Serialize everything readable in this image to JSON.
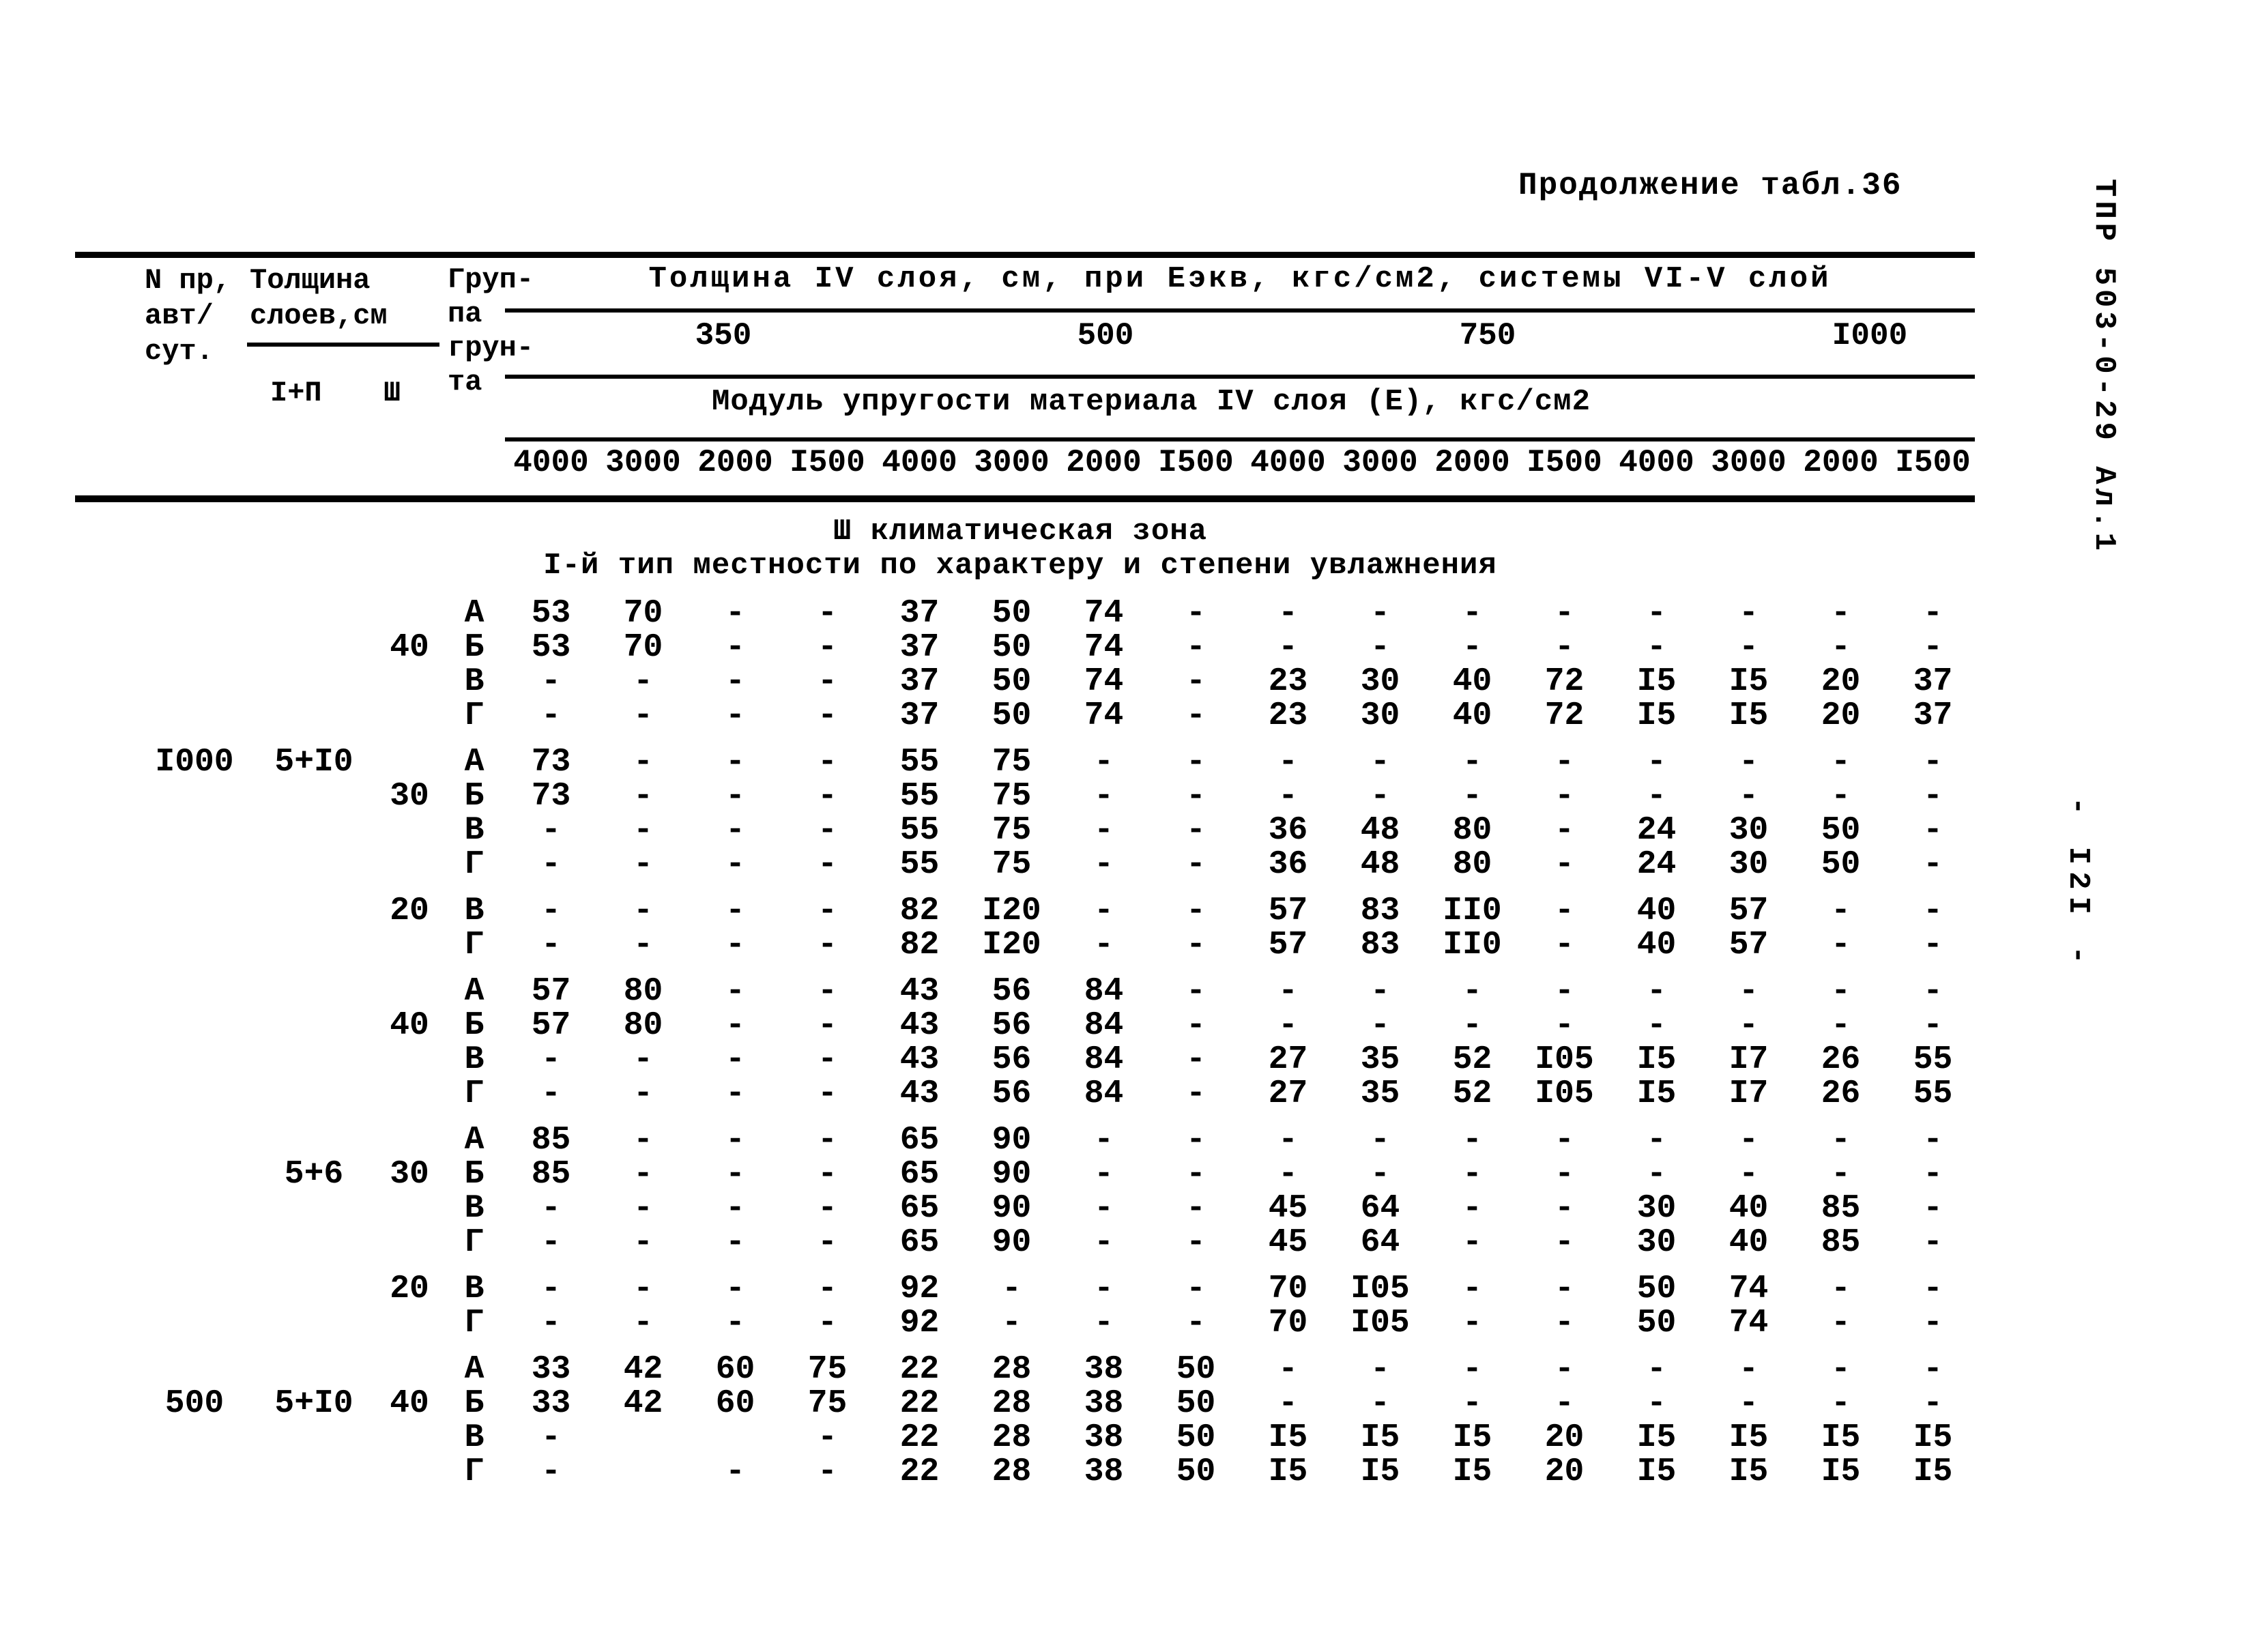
{
  "page": {
    "title": "Продолжение табл.36",
    "doc_code_vertical": "ТПР 503-0-29  Ал.1",
    "page_number_vertical": "-  I2I  -",
    "ink_color": "#000000",
    "paper_color": "#ffffff"
  },
  "table": {
    "header": {
      "traffic_lines": [
        "N пр,",
        "авт/",
        "сут."
      ],
      "thickness_title": "Толщина",
      "thickness_title2": "слоев,см",
      "thickness_sub_left": "I+П",
      "thickness_sub_right": "Ш",
      "soil_group_lines": [
        "Груп-",
        "па",
        "грун-",
        "та"
      ],
      "span_title": "Толщина IV слоя, см, при Еэкв, кгс/см2, системы VI-V слой",
      "eekv_values": [
        "350",
        "500",
        "750",
        "I000"
      ],
      "modulus_title": "Модуль упругости материала IV слоя (Е), кгс/см2",
      "modulus_values": [
        "4000",
        "3000",
        "2000",
        "I500",
        "4000",
        "3000",
        "2000",
        "I500",
        "4000",
        "3000",
        "2000",
        "I500",
        "4000",
        "3000",
        "2000",
        "I500"
      ]
    },
    "zone_title": "Ш климатическая зона",
    "zone_subtitle": "I-й тип местности по характеру и степени увлажнения",
    "rows": [
      {
        "n": "",
        "t12": "",
        "t3": "",
        "g": "А",
        "v": [
          "53",
          "70",
          "-",
          "-",
          "37",
          "50",
          "74",
          "-",
          "-",
          "-",
          "-",
          "-",
          "-",
          "-",
          "-",
          "-"
        ]
      },
      {
        "n": "",
        "t12": "",
        "t3": "40",
        "g": "Б",
        "v": [
          "53",
          "70",
          "-",
          "-",
          "37",
          "50",
          "74",
          "-",
          "-",
          "-",
          "-",
          "-",
          "-",
          "-",
          "-",
          "-"
        ]
      },
      {
        "n": "",
        "t12": "",
        "t3": "",
        "g": "В",
        "v": [
          "-",
          "-",
          "-",
          "-",
          "37",
          "50",
          "74",
          "-",
          "23",
          "30",
          "40",
          "72",
          "I5",
          "I5",
          "20",
          "37"
        ]
      },
      {
        "n": "",
        "t12": "",
        "t3": "",
        "g": "Г",
        "v": [
          "-",
          "-",
          "-",
          "-",
          "37",
          "50",
          "74",
          "-",
          "23",
          "30",
          "40",
          "72",
          "I5",
          "I5",
          "20",
          "37"
        ]
      },
      {
        "gap": true,
        "n": "I000",
        "t12": "5+I0",
        "t3": "",
        "g": "А",
        "v": [
          "73",
          "-",
          "-",
          "-",
          "55",
          "75",
          "-",
          "-",
          "-",
          "-",
          "-",
          "-",
          "-",
          "-",
          "-",
          "-"
        ]
      },
      {
        "n": "",
        "t12": "",
        "t3": "30",
        "g": "Б",
        "v": [
          "73",
          "-",
          "-",
          "-",
          "55",
          "75",
          "-",
          "-",
          "-",
          "-",
          "-",
          "-",
          "-",
          "-",
          "-",
          "-"
        ]
      },
      {
        "n": "",
        "t12": "",
        "t3": "",
        "g": "В",
        "v": [
          "-",
          "-",
          "-",
          "-",
          "55",
          "75",
          "-",
          "-",
          "36",
          "48",
          "80",
          "-",
          "24",
          "30",
          "50",
          "-"
        ]
      },
      {
        "n": "",
        "t12": "",
        "t3": "",
        "g": "Г",
        "v": [
          "-",
          "-",
          "-",
          "-",
          "55",
          "75",
          "-",
          "-",
          "36",
          "48",
          "80",
          "-",
          "24",
          "30",
          "50",
          "-"
        ]
      },
      {
        "gap": true,
        "n": "",
        "t12": "",
        "t3": "20",
        "g": "В",
        "v": [
          "-",
          "-",
          "-",
          "-",
          "82",
          "I20",
          "-",
          "-",
          "57",
          "83",
          "II0",
          "-",
          "40",
          "57",
          "-",
          "-"
        ]
      },
      {
        "n": "",
        "t12": "",
        "t3": "",
        "g": "Г",
        "v": [
          "-",
          "-",
          "-",
          "-",
          "82",
          "I20",
          "-",
          "-",
          "57",
          "83",
          "II0",
          "-",
          "40",
          "57",
          "-",
          "-"
        ]
      },
      {
        "gap": true,
        "n": "",
        "t12": "",
        "t3": "",
        "g": "А",
        "v": [
          "57",
          "80",
          "-",
          "-",
          "43",
          "56",
          "84",
          "-",
          "-",
          "-",
          "-",
          "-",
          "-",
          "-",
          "-",
          "-"
        ]
      },
      {
        "n": "",
        "t12": "",
        "t3": "40",
        "g": "Б",
        "v": [
          "57",
          "80",
          "-",
          "-",
          "43",
          "56",
          "84",
          "-",
          "-",
          "-",
          "-",
          "-",
          "-",
          "-",
          "-",
          "-"
        ]
      },
      {
        "n": "",
        "t12": "",
        "t3": "",
        "g": "В",
        "v": [
          "-",
          "-",
          "-",
          "-",
          "43",
          "56",
          "84",
          "-",
          "27",
          "35",
          "52",
          "I05",
          "I5",
          "I7",
          "26",
          "55"
        ]
      },
      {
        "n": "",
        "t12": "",
        "t3": "",
        "g": "Г",
        "v": [
          "-",
          "-",
          "-",
          "-",
          "43",
          "56",
          "84",
          "-",
          "27",
          "35",
          "52",
          "I05",
          "I5",
          "I7",
          "26",
          "55"
        ]
      },
      {
        "gap": true,
        "n": "",
        "t12": "",
        "t3": "",
        "g": "А",
        "v": [
          "85",
          "-",
          "-",
          "-",
          "65",
          "90",
          "-",
          "-",
          "-",
          "-",
          "-",
          "-",
          "-",
          "-",
          "-",
          "-"
        ]
      },
      {
        "n": "",
        "t12": "5+6",
        "t3": "30",
        "g": "Б",
        "v": [
          "85",
          "-",
          "-",
          "-",
          "65",
          "90",
          "-",
          "-",
          "-",
          "-",
          "-",
          "-",
          "-",
          "-",
          "-",
          "-"
        ]
      },
      {
        "n": "",
        "t12": "",
        "t3": "",
        "g": "В",
        "v": [
          "-",
          "-",
          "-",
          "-",
          "65",
          "90",
          "-",
          "-",
          "45",
          "64",
          "-",
          "-",
          "30",
          "40",
          "85",
          "-"
        ]
      },
      {
        "n": "",
        "t12": "",
        "t3": "",
        "g": "Г",
        "v": [
          "-",
          "-",
          "-",
          "-",
          "65",
          "90",
          "-",
          "-",
          "45",
          "64",
          "-",
          "-",
          "30",
          "40",
          "85",
          "-"
        ]
      },
      {
        "gap": true,
        "n": "",
        "t12": "",
        "t3": "20",
        "g": "В",
        "v": [
          "-",
          "-",
          "-",
          "-",
          "92",
          "-",
          "-",
          "-",
          "70",
          "I05",
          "-",
          "-",
          "50",
          "74",
          "-",
          "-"
        ]
      },
      {
        "n": "",
        "t12": "",
        "t3": "",
        "g": "Г",
        "v": [
          "-",
          "-",
          "-",
          "-",
          "92",
          "-",
          "-",
          "-",
          "70",
          "I05",
          "-",
          "-",
          "50",
          "74",
          "-",
          "-"
        ]
      },
      {
        "gap": true,
        "n": "",
        "t12": "",
        "t3": "",
        "g": "А",
        "v": [
          "33",
          "42",
          "60",
          "75",
          "22",
          "28",
          "38",
          "50",
          "-",
          "-",
          "-",
          "-",
          "-",
          "-",
          "-",
          "-"
        ]
      },
      {
        "n": "500",
        "t12": "5+I0",
        "t3": "40",
        "g": "Б",
        "v": [
          "33",
          "42",
          "60",
          "75",
          "22",
          "28",
          "38",
          "50",
          "-",
          "-",
          "-",
          "-",
          "-",
          "-",
          "-",
          "-"
        ]
      },
      {
        "n": "",
        "t12": "",
        "t3": "",
        "g": "В",
        "v": [
          "-",
          "",
          "",
          "-",
          "22",
          "28",
          "38",
          "50",
          "I5",
          "I5",
          "I5",
          "20",
          "I5",
          "I5",
          "I5",
          "I5"
        ]
      },
      {
        "n": "",
        "t12": "",
        "t3": "",
        "g": "Г",
        "v": [
          "-",
          "",
          "-",
          "-",
          "22",
          "28",
          "38",
          "50",
          "I5",
          "I5",
          "I5",
          "20",
          "I5",
          "I5",
          "I5",
          "I5"
        ]
      }
    ]
  }
}
